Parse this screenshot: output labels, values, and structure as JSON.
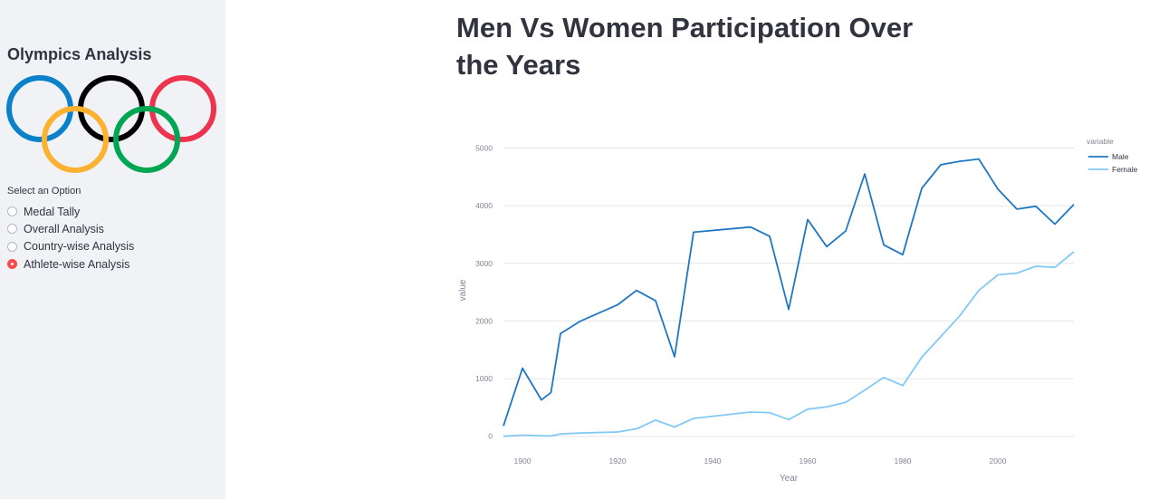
{
  "sidebar": {
    "title": "Olympics Analysis",
    "radio_label": "Select an Option",
    "options": [
      {
        "label": "Medal Tally",
        "selected": false
      },
      {
        "label": "Overall Analysis",
        "selected": false
      },
      {
        "label": "Country-wise Analysis",
        "selected": false
      },
      {
        "label": "Athlete-wise Analysis",
        "selected": true
      }
    ],
    "logo_ring_colors": [
      "#0a81c8",
      "#000000",
      "#ee334e",
      "#fcb131",
      "#00a651"
    ]
  },
  "main": {
    "title": "Men Vs Women Participation Over the Years"
  },
  "chart_data": {
    "type": "line",
    "title": "",
    "xlabel": "Year",
    "ylabel": "value",
    "legend_title": "variable",
    "legend_position": "top-right",
    "xlim": [
      1896,
      2016
    ],
    "ylim": [
      -20,
      5400
    ],
    "x_ticks": [
      1900,
      1920,
      1940,
      1960,
      1980,
      2000
    ],
    "y_ticks": [
      0,
      1000,
      2000,
      3000,
      4000,
      5000
    ],
    "grid": true,
    "series": [
      {
        "name": "Male",
        "color": "#1f77c4",
        "x": [
          1896,
          1900,
          1904,
          1906,
          1908,
          1912,
          1920,
          1924,
          1928,
          1932,
          1936,
          1948,
          1952,
          1956,
          1960,
          1964,
          1968,
          1972,
          1976,
          1980,
          1984,
          1988,
          1992,
          1996,
          2000,
          2004,
          2008,
          2012,
          2016
        ],
        "y": [
          180,
          1180,
          630,
          760,
          1780,
          1990,
          2280,
          2530,
          2350,
          1380,
          3540,
          3630,
          3470,
          2200,
          3760,
          3290,
          3560,
          4550,
          3320,
          3150,
          4300,
          4710,
          4770,
          4810,
          4290,
          3940,
          3990,
          3680,
          4020
        ]
      },
      {
        "name": "Female",
        "color": "#83c9f4",
        "x": [
          1896,
          1900,
          1904,
          1906,
          1908,
          1912,
          1920,
          1924,
          1928,
          1932,
          1936,
          1948,
          1952,
          1956,
          1960,
          1964,
          1968,
          1972,
          1976,
          1980,
          1984,
          1988,
          1992,
          1996,
          2000,
          2004,
          2008,
          2012,
          2016
        ],
        "y": [
          0,
          20,
          10,
          5,
          40,
          55,
          75,
          130,
          280,
          160,
          310,
          420,
          410,
          290,
          470,
          510,
          590,
          800,
          1020,
          880,
          1370,
          1730,
          2090,
          2530,
          2800,
          2830,
          2950,
          2930,
          3200
        ]
      }
    ]
  }
}
